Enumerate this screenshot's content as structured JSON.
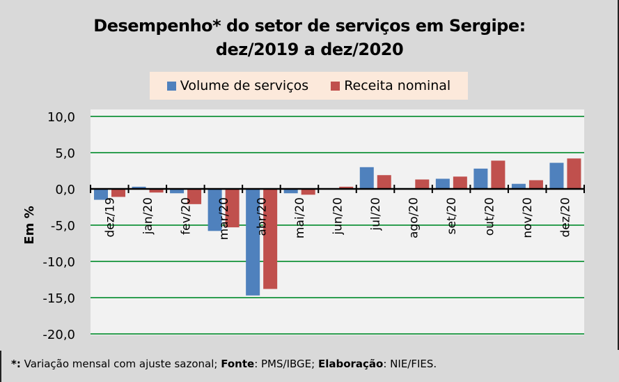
{
  "chart_data": {
    "type": "bar",
    "title": "Desempenho* do setor de serviços em Sergipe:",
    "subtitle": "dez/2019 a dez/2020",
    "xlabel": "",
    "ylabel": "Em %",
    "ylim": [
      -20,
      10
    ],
    "yticks": [
      10,
      5,
      0,
      -5,
      -10,
      -15,
      -20
    ],
    "ytick_labels": [
      "10,0",
      "5,0",
      "0,0",
      "-5,0",
      "-10,0",
      "-15,0",
      "-20,0"
    ],
    "grid": true,
    "legend_position": "top-center",
    "categories": [
      "dez/19",
      "jan/20",
      "fev/20",
      "mar/20",
      "abr/20",
      "mai/20",
      "jun/20",
      "jul/20",
      "ago/20",
      "set/20",
      "out/20",
      "nov/20",
      "dez/20"
    ],
    "series": [
      {
        "name": "Volume de serviços",
        "color": "#4f81bd",
        "values": [
          -1.5,
          0.3,
          -0.6,
          -5.8,
          -14.7,
          -0.6,
          0.0,
          3.0,
          0.1,
          1.4,
          2.8,
          0.7,
          3.6
        ]
      },
      {
        "name": "Receita nominal",
        "color": "#c0504d",
        "values": [
          -1.1,
          -0.5,
          -2.1,
          -5.3,
          -13.8,
          -0.8,
          0.3,
          1.9,
          1.3,
          1.7,
          3.9,
          1.2,
          4.2
        ]
      }
    ]
  },
  "colors": {
    "background": "#d9d9d9",
    "plot_background": "#f2f2f2",
    "gridline": "#2e9e50",
    "legend_background": "#fce9db"
  },
  "footer": {
    "asterisk": "*:",
    "note": " Variação mensal com ajuste sazonal; ",
    "source_label": "Fonte",
    "source_text": ": PMS/IBGE; ",
    "author_label": "Elaboração",
    "author_text": ": NIE/FIES."
  }
}
